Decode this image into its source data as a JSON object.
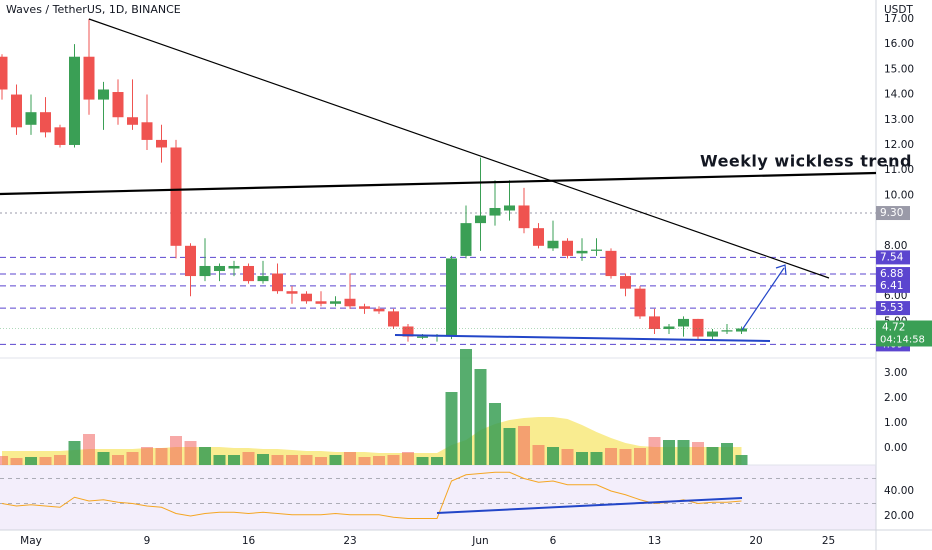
{
  "chart_data": {
    "type": "candlestick",
    "title": "Waves / TetherUS, 1D, BINANCE",
    "currency": "USDT",
    "annotation": "Weekly wickless trend",
    "countdown": "04:14:58",
    "categories": [
      null,
      null,
      "May",
      null,
      null,
      null,
      null,
      null,
      null,
      null,
      "9",
      null,
      null,
      null,
      null,
      null,
      null,
      "16",
      null,
      null,
      null,
      null,
      null,
      null,
      "23",
      null,
      null,
      null,
      null,
      null,
      null,
      null,
      null,
      "Jun",
      null,
      null,
      null,
      null,
      "6",
      null,
      null,
      null,
      null,
      null,
      null,
      "13",
      null,
      null,
      null,
      null,
      null,
      null,
      "20",
      null,
      null,
      null,
      null,
      "25"
    ],
    "open": [
      15.5,
      14.0,
      12.8,
      13.3,
      12.7,
      12.0,
      15.5,
      13.8,
      14.1,
      13.1,
      12.9,
      12.2,
      11.9,
      8.0,
      6.8,
      7.0,
      7.1,
      7.2,
      6.6,
      6.9,
      6.2,
      6.1,
      5.8,
      5.7,
      5.9,
      5.6,
      5.5,
      5.4,
      4.8,
      4.35,
      4.4,
      4.45,
      7.6,
      8.9,
      9.2,
      9.4,
      9.6,
      8.7,
      7.9,
      8.2,
      7.7,
      7.8,
      7.8,
      6.8,
      6.3,
      5.2,
      4.7,
      4.8,
      5.1,
      4.4,
      4.6,
      4.6,
      null,
      null,
      null,
      null,
      null,
      null
    ],
    "high": [
      15.6,
      14.4,
      14.0,
      13.9,
      12.8,
      16.0,
      17.0,
      14.5,
      14.6,
      14.6,
      14.0,
      12.8,
      12.2,
      8.1,
      8.3,
      7.3,
      7.4,
      7.3,
      7.4,
      7.3,
      6.4,
      6.2,
      6.2,
      6.0,
      6.9,
      5.7,
      5.6,
      5.5,
      4.9,
      4.5,
      4.5,
      7.6,
      9.6,
      11.5,
      10.6,
      10.6,
      10.3,
      8.9,
      9.0,
      8.3,
      8.3,
      8.3,
      7.9,
      6.9,
      6.4,
      5.5,
      4.9,
      5.2,
      5.1,
      4.7,
      4.9,
      4.8,
      null,
      null,
      null,
      null,
      null,
      null
    ],
    "low": [
      13.8,
      12.4,
      12.4,
      12.3,
      11.9,
      11.9,
      13.2,
      12.6,
      12.8,
      12.6,
      11.8,
      11.3,
      7.5,
      6.0,
      6.6,
      6.6,
      6.8,
      6.5,
      6.5,
      6.1,
      5.7,
      5.7,
      5.6,
      5.6,
      5.5,
      5.3,
      5.3,
      4.7,
      4.2,
      4.3,
      4.2,
      4.3,
      7.5,
      7.8,
      8.8,
      9.0,
      8.5,
      7.9,
      7.8,
      7.5,
      7.4,
      7.6,
      6.7,
      6.0,
      5.1,
      4.5,
      4.5,
      4.4,
      4.3,
      4.3,
      4.5,
      4.5,
      null,
      null,
      null,
      null,
      null,
      null
    ],
    "close": [
      14.2,
      12.7,
      13.3,
      12.5,
      12.0,
      15.5,
      13.8,
      14.2,
      13.1,
      12.8,
      12.2,
      11.9,
      8.0,
      6.8,
      7.2,
      7.2,
      7.2,
      6.6,
      6.8,
      6.2,
      6.1,
      5.8,
      5.7,
      5.8,
      5.6,
      5.5,
      5.4,
      4.8,
      4.4,
      4.4,
      4.45,
      7.5,
      8.9,
      9.2,
      9.5,
      9.6,
      8.7,
      8.0,
      8.2,
      7.6,
      7.8,
      7.85,
      6.8,
      6.3,
      5.2,
      4.7,
      4.8,
      5.1,
      4.4,
      4.6,
      4.65,
      4.72,
      null,
      null,
      null,
      null,
      null,
      null
    ],
    "up_color": "#3a9f55",
    "down_color": "#ef5350",
    "ylim": [
      3.55,
      17.75
    ],
    "yticks": [
      {
        "value": 17,
        "label": "17.00"
      },
      {
        "value": 16,
        "label": "16.00"
      },
      {
        "value": 15,
        "label": "15.00"
      },
      {
        "value": 14,
        "label": "14.00"
      },
      {
        "value": 13,
        "label": "13.00"
      },
      {
        "value": 12,
        "label": "12.00"
      },
      {
        "value": 11,
        "label": "11.00"
      },
      {
        "value": 10,
        "label": "10.00"
      },
      {
        "value": 8,
        "label": "8.00"
      },
      {
        "value": 6,
        "label": "6.00"
      },
      {
        "value": 5,
        "label": "5.00"
      }
    ],
    "levels": [
      {
        "value": 9.3,
        "label": "9.30",
        "color": "#9a9aa8"
      },
      {
        "value": 7.54,
        "color": "#5b45cf"
      },
      {
        "value": 6.88,
        "color": "#5b45cf"
      },
      {
        "value": 6.41,
        "color": "#5b45cf"
      },
      {
        "value": 5.53,
        "color": "#5b45cf"
      },
      {
        "value": 4.09,
        "color": "#5b45cf"
      }
    ],
    "last_price": 4.72,
    "volume": [
      9,
      7,
      8,
      8,
      10,
      24,
      31,
      13,
      10,
      13,
      18,
      17,
      29,
      24,
      18,
      10,
      10,
      13,
      11,
      10,
      10,
      10,
      8,
      10,
      13,
      8,
      9,
      10,
      13,
      8,
      8,
      73,
      116,
      96,
      62,
      37,
      39,
      20,
      18,
      16,
      13,
      13,
      17,
      16,
      17,
      28,
      25,
      25,
      23,
      18,
      22,
      10,
      null,
      null,
      null,
      null,
      null,
      null
    ],
    "volume_ma": [
      14,
      14,
      14,
      14,
      14,
      15,
      16,
      16,
      16,
      16,
      17,
      17,
      18,
      18,
      18,
      18,
      17,
      17,
      16,
      16,
      15,
      14,
      14,
      13,
      13,
      13,
      12,
      12,
      12,
      12,
      12,
      20,
      25,
      35,
      41,
      45,
      47,
      48,
      48,
      46,
      40,
      33,
      27,
      22,
      19,
      18,
      18,
      18,
      18,
      18,
      18,
      18,
      null,
      null,
      null,
      null,
      null,
      null
    ],
    "volume_lim": [
      0,
      107
    ],
    "volume_ma_color": "#f7e56b",
    "volume_pane_ylim": [
      -0.68,
      3.6
    ],
    "volume_pane_yticks": [
      {
        "value": 3,
        "label": "3.00"
      },
      {
        "value": 2,
        "label": "2.00"
      },
      {
        "value": 1,
        "label": "1.00"
      },
      {
        "value": 0,
        "label": "0.00"
      }
    ],
    "rsi": [
      30,
      28,
      29,
      28,
      27,
      35,
      32,
      33,
      31,
      30,
      28,
      27,
      22,
      20,
      22,
      23,
      23,
      22,
      23,
      22,
      21,
      21,
      21,
      22,
      21,
      21,
      21,
      19,
      18,
      18,
      18,
      48,
      53,
      54,
      55,
      55,
      50,
      47,
      48,
      45,
      45,
      45,
      40,
      37,
      33,
      30,
      31,
      33,
      30,
      31,
      31,
      32,
      null,
      null,
      null,
      null,
      null,
      null
    ],
    "rsi_color": "#f5a623",
    "rsi_ylim": [
      8.8,
      60.8
    ],
    "rsi_yticks": [
      {
        "value": 40,
        "label": "40.00"
      },
      {
        "value": 20,
        "label": "20.00"
      }
    ],
    "rsi_bands": [
      50,
      30
    ]
  }
}
